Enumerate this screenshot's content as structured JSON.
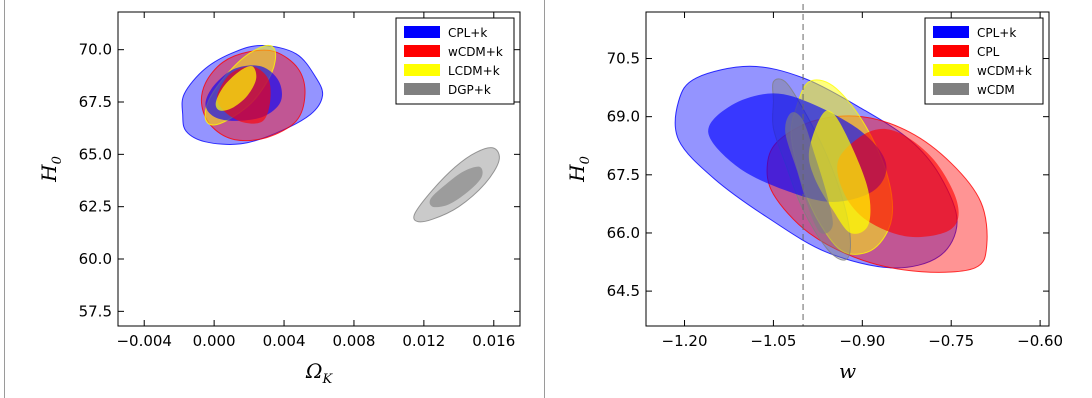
{
  "chart_data": [
    {
      "type": "contour",
      "xlabel": "Ω",
      "xlabel_sub": "K",
      "ylabel": "H",
      "ylabel_sub": "0",
      "xlim": [
        -0.0055,
        0.0175
      ],
      "ylim": [
        56.8,
        71.8
      ],
      "xticks": [
        -0.004,
        0.0,
        0.004,
        0.008,
        0.012,
        0.016
      ],
      "xtick_labels": [
        "−0.004",
        "0.000",
        "0.004",
        "0.008",
        "0.012",
        "0.016"
      ],
      "yticks": [
        57.5,
        60.0,
        62.5,
        65.0,
        67.5,
        70.0
      ],
      "ytick_labels": [
        "57.5",
        "60.0",
        "62.5",
        "65.0",
        "67.5",
        "70.0"
      ],
      "legend_position": "top-right",
      "legend": [
        {
          "label": "CPL+k",
          "color": "#0000ff"
        },
        {
          "label": "wCDM+k",
          "color": "#ff0000"
        },
        {
          "label": "LCDM+k",
          "color": "#ffff00"
        },
        {
          "label": "DGP+k",
          "color": "#808080"
        }
      ],
      "series": [
        {
          "name": "CPL+k",
          "color": "#0000ff",
          "contours": [
            {
              "level": "2sigma",
              "points": [
                [
                  -0.0018,
                  66.9
                ],
                [
                  -0.0017,
                  67.9
                ],
                [
                  -0.0005,
                  69.1
                ],
                [
                  0.0012,
                  69.9
                ],
                [
                  0.0028,
                  70.2
                ],
                [
                  0.0047,
                  69.8
                ],
                [
                  0.0058,
                  68.7
                ],
                [
                  0.0062,
                  67.8
                ],
                [
                  0.0055,
                  66.9
                ],
                [
                  0.0035,
                  66.0
                ],
                [
                  0.0015,
                  65.5
                ],
                [
                  -0.0005,
                  65.6
                ],
                [
                  -0.0016,
                  66.1
                ]
              ]
            },
            {
              "level": "1sigma",
              "points": [
                [
                  -0.0005,
                  67.4
                ],
                [
                  0.0,
                  68.3
                ],
                [
                  0.0012,
                  69.1
                ],
                [
                  0.0027,
                  69.2
                ],
                [
                  0.0037,
                  68.5
                ],
                [
                  0.0038,
                  67.5
                ],
                [
                  0.0028,
                  66.8
                ],
                [
                  0.0012,
                  66.6
                ],
                [
                  0.0,
                  66.8
                ]
              ]
            }
          ]
        },
        {
          "name": "wCDM+k",
          "color": "#ff0000",
          "contours": [
            {
              "level": "2sigma",
              "points": [
                [
                  -0.0005,
                  68.4
                ],
                [
                  0.0005,
                  69.4
                ],
                [
                  0.002,
                  69.9
                ],
                [
                  0.0035,
                  69.9
                ],
                [
                  0.0048,
                  69.1
                ],
                [
                  0.0052,
                  67.9
                ],
                [
                  0.0047,
                  66.6
                ],
                [
                  0.003,
                  65.8
                ],
                [
                  0.0012,
                  65.7
                ],
                [
                  -0.0001,
                  66.3
                ],
                [
                  -0.0007,
                  67.3
                ]
              ]
            },
            {
              "level": "1sigma",
              "points": [
                [
                  0.0003,
                  68.1
                ],
                [
                  0.001,
                  68.9
                ],
                [
                  0.0022,
                  69.2
                ],
                [
                  0.0031,
                  68.6
                ],
                [
                  0.0032,
                  67.5
                ],
                [
                  0.0028,
                  66.6
                ],
                [
                  0.0018,
                  66.5
                ],
                [
                  0.0008,
                  66.9
                ],
                [
                  0.0002,
                  67.5
                ]
              ]
            }
          ]
        },
        {
          "name": "LCDM+k",
          "color": "#ffff00",
          "contours": [
            {
              "level": "2sigma",
              "points": [
                [
                  -0.0005,
                  66.7
                ],
                [
                  -0.0003,
                  67.6
                ],
                [
                  0.0006,
                  68.7
                ],
                [
                  0.0018,
                  69.7
                ],
                [
                  0.003,
                  70.2
                ],
                [
                  0.0035,
                  69.9
                ],
                [
                  0.0033,
                  68.9
                ],
                [
                  0.0023,
                  67.6
                ],
                [
                  0.0011,
                  66.8
                ],
                [
                  0.0,
                  66.4
                ]
              ]
            },
            {
              "level": "1sigma",
              "points": [
                [
                  0.0001,
                  67.5
                ],
                [
                  0.0006,
                  68.3
                ],
                [
                  0.0015,
                  69.0
                ],
                [
                  0.0022,
                  69.2
                ],
                [
                  0.0024,
                  68.6
                ],
                [
                  0.0019,
                  67.8
                ],
                [
                  0.001,
                  67.2
                ],
                [
                  0.0003,
                  67.1
                ]
              ]
            }
          ]
        },
        {
          "name": "DGP+k",
          "color": "#808080",
          "contours": [
            {
              "level": "2sigma",
              "points": [
                [
                  0.0115,
                  62.2
                ],
                [
                  0.0125,
                  63.3
                ],
                [
                  0.0138,
                  64.4
                ],
                [
                  0.015,
                  65.1
                ],
                [
                  0.016,
                  65.3
                ],
                [
                  0.0163,
                  64.7
                ],
                [
                  0.0155,
                  63.6
                ],
                [
                  0.014,
                  62.5
                ],
                [
                  0.0125,
                  61.9
                ],
                [
                  0.0116,
                  61.8
                ]
              ]
            },
            {
              "level": "1sigma",
              "points": [
                [
                  0.0124,
                  62.9
                ],
                [
                  0.0133,
                  63.6
                ],
                [
                  0.0143,
                  64.2
                ],
                [
                  0.0152,
                  64.4
                ],
                [
                  0.0153,
                  63.9
                ],
                [
                  0.0145,
                  63.2
                ],
                [
                  0.0134,
                  62.6
                ],
                [
                  0.0125,
                  62.5
                ]
              ]
            }
          ]
        }
      ]
    },
    {
      "type": "contour",
      "xlabel": "w",
      "xlabel_sub": "",
      "ylabel": "H",
      "ylabel_sub": "0",
      "xlim": [
        -1.265,
        -0.585
      ],
      "ylim": [
        63.6,
        71.7
      ],
      "xticks": [
        -1.2,
        -1.05,
        -0.9,
        -0.75,
        -0.6
      ],
      "xtick_labels": [
        "−1.20",
        "−1.05",
        "−0.90",
        "−0.75",
        "−0.60"
      ],
      "yticks": [
        64.5,
        66.0,
        67.5,
        69.0,
        70.5
      ],
      "ytick_labels": [
        "64.5",
        "66.0",
        "67.5",
        "69.0",
        "70.5"
      ],
      "vline": -1.0,
      "legend_position": "top-right",
      "legend": [
        {
          "label": "CPL+k",
          "color": "#0000ff"
        },
        {
          "label": "CPL",
          "color": "#ff0000"
        },
        {
          "label": "wCDM+k",
          "color": "#ffff00"
        },
        {
          "label": "wCDM",
          "color": "#808080"
        }
      ],
      "series": [
        {
          "name": "CPL+k",
          "color": "#0000ff",
          "contours": [
            {
              "level": "2sigma",
              "points": [
                [
                  -1.21,
                  69.4
                ],
                [
                  -1.18,
                  70.0
                ],
                [
                  -1.09,
                  70.3
                ],
                [
                  -1.0,
                  70.0
                ],
                [
                  -0.9,
                  69.2
                ],
                [
                  -0.82,
                  68.4
                ],
                [
                  -0.77,
                  67.5
                ],
                [
                  -0.74,
                  66.3
                ],
                [
                  -0.77,
                  65.4
                ],
                [
                  -0.85,
                  65.1
                ],
                [
                  -0.96,
                  65.5
                ],
                [
                  -1.06,
                  66.4
                ],
                [
                  -1.15,
                  67.4
                ],
                [
                  -1.21,
                  68.4
                ]
              ]
            },
            {
              "level": "1sigma",
              "points": [
                [
                  -1.16,
                  68.6
                ],
                [
                  -1.12,
                  69.3
                ],
                [
                  -1.05,
                  69.6
                ],
                [
                  -0.98,
                  69.3
                ],
                [
                  -0.9,
                  68.6
                ],
                [
                  -0.86,
                  67.8
                ],
                [
                  -0.88,
                  67.1
                ],
                [
                  -0.95,
                  66.8
                ],
                [
                  -1.03,
                  67.1
                ],
                [
                  -1.11,
                  67.7
                ]
              ]
            }
          ]
        },
        {
          "name": "CPL",
          "color": "#ff0000",
          "contours": [
            {
              "level": "2sigma",
              "points": [
                [
                  -1.04,
                  68.4
                ],
                [
                  -0.98,
                  68.9
                ],
                [
                  -0.9,
                  69.0
                ],
                [
                  -0.82,
                  68.6
                ],
                [
                  -0.75,
                  67.8
                ],
                [
                  -0.7,
                  66.8
                ],
                [
                  -0.69,
                  65.7
                ],
                [
                  -0.71,
                  65.1
                ],
                [
                  -0.8,
                  65.0
                ],
                [
                  -0.9,
                  65.3
                ],
                [
                  -0.99,
                  66.0
                ],
                [
                  -1.05,
                  67.0
                ],
                [
                  -1.06,
                  67.8
                ]
              ]
            },
            {
              "level": "1sigma",
              "points": [
                [
                  -0.94,
                  67.9
                ],
                [
                  -0.89,
                  68.6
                ],
                [
                  -0.84,
                  68.6
                ],
                [
                  -0.78,
                  67.9
                ],
                [
                  -0.74,
                  66.8
                ],
                [
                  -0.75,
                  66.1
                ],
                [
                  -0.82,
                  65.9
                ],
                [
                  -0.89,
                  66.3
                ],
                [
                  -0.93,
                  67.0
                ]
              ]
            }
          ]
        },
        {
          "name": "wCDM+k",
          "color": "#ffff00",
          "contours": [
            {
              "level": "2sigma",
              "points": [
                [
                  -1.02,
                  68.5
                ],
                [
                  -1.01,
                  69.3
                ],
                [
                  -0.99,
                  69.9
                ],
                [
                  -0.95,
                  69.8
                ],
                [
                  -0.9,
                  68.9
                ],
                [
                  -0.86,
                  67.6
                ],
                [
                  -0.85,
                  66.4
                ],
                [
                  -0.88,
                  65.6
                ],
                [
                  -0.93,
                  65.5
                ],
                [
                  -0.97,
                  66.2
                ],
                [
                  -1.0,
                  67.2
                ]
              ]
            },
            {
              "level": "1sigma",
              "points": [
                [
                  -0.99,
                  68.1
                ],
                [
                  -0.97,
                  69.0
                ],
                [
                  -0.95,
                  69.1
                ],
                [
                  -0.92,
                  68.3
                ],
                [
                  -0.89,
                  67.1
                ],
                [
                  -0.89,
                  66.2
                ],
                [
                  -0.92,
                  66.0
                ],
                [
                  -0.95,
                  66.6
                ],
                [
                  -0.98,
                  67.4
                ]
              ]
            }
          ]
        },
        {
          "name": "wCDM",
          "color": "#808080",
          "contours": [
            {
              "level": "2sigma",
              "points": [
                [
                  -1.05,
                  69.4
                ],
                [
                  -1.05,
                  69.9
                ],
                [
                  -1.03,
                  69.9
                ],
                [
                  -1.0,
                  69.2
                ],
                [
                  -0.96,
                  68.0
                ],
                [
                  -0.93,
                  66.7
                ],
                [
                  -0.92,
                  65.7
                ],
                [
                  -0.93,
                  65.3
                ],
                [
                  -0.96,
                  65.6
                ],
                [
                  -1.0,
                  66.6
                ],
                [
                  -1.03,
                  67.8
                ],
                [
                  -1.05,
                  68.7
                ]
              ]
            },
            {
              "level": "1sigma",
              "points": [
                [
                  -1.03,
                  68.6
                ],
                [
                  -1.02,
                  69.1
                ],
                [
                  -1.0,
                  68.9
                ],
                [
                  -0.98,
                  68.0
                ],
                [
                  -0.96,
                  67.0
                ],
                [
                  -0.95,
                  66.2
                ],
                [
                  -0.97,
                  66.0
                ],
                [
                  -0.99,
                  66.6
                ],
                [
                  -1.01,
                  67.6
                ]
              ]
            }
          ]
        }
      ]
    }
  ]
}
